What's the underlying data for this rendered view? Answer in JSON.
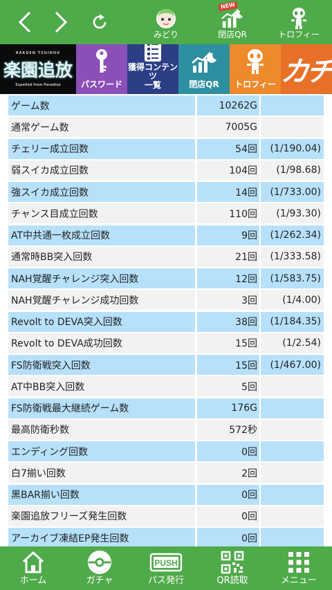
{
  "topbar": {
    "nav": [
      {
        "name": "back",
        "icon": "chevron-left-icon"
      },
      {
        "name": "forward",
        "icon": "chevron-right-icon"
      },
      {
        "name": "reload",
        "icon": "reload-icon"
      }
    ],
    "items": [
      {
        "label": "みどり",
        "icon": "character-face-icon"
      },
      {
        "label": "閉店QR",
        "icon": "chart-moon-icon",
        "badge": "NEW"
      },
      {
        "label": "トロフィー",
        "icon": "trophy-character-icon"
      }
    ]
  },
  "banner": {
    "logo_title": "楽園追放",
    "logo_kana": "RAKUEN TSUIHOU",
    "logo_sub": "Expelled from Paradise",
    "password": "パスワード",
    "contents_line1": "獲得コンテンツ",
    "contents_line2": "一覧",
    "closing_qr": "閉店QR",
    "trophy": "トロフィー",
    "app_logo": "カチ"
  },
  "stats": {
    "rows": [
      {
        "label": "ゲーム数",
        "value": "10262G",
        "ratio": ""
      },
      {
        "label": "通常ゲーム数",
        "value": "7005G",
        "ratio": ""
      },
      {
        "label": "チェリー成立回数",
        "value": "54回",
        "ratio": "(1/190.04)"
      },
      {
        "label": "弱スイカ成立回数",
        "value": "104回",
        "ratio": "(1/98.68)"
      },
      {
        "label": "強スイカ成立回数",
        "value": "14回",
        "ratio": "(1/733.00)"
      },
      {
        "label": "チャンス目成立回数",
        "value": "110回",
        "ratio": "(1/93.30)"
      },
      {
        "label": "AT中共通一枚成立回数",
        "value": "9回",
        "ratio": "(1/262.34)"
      },
      {
        "label": "通常時BB突入回数",
        "value": "21回",
        "ratio": "(1/333.58)"
      },
      {
        "label": "NAH覚醒チャレンジ突入回数",
        "value": "12回",
        "ratio": "(1/583.75)"
      },
      {
        "label": "NAH覚醒チャレンジ成功回数",
        "value": "3回",
        "ratio": "(1/4.00)"
      },
      {
        "label": "Revolt to DEVA突入回数",
        "value": "38回",
        "ratio": "(1/184.35)"
      },
      {
        "label": "Revolt to DEVA成功回数",
        "value": "15回",
        "ratio": "(1/2.54)"
      },
      {
        "label": "FS防衛戦突入回数",
        "value": "15回",
        "ratio": "(1/467.00)"
      },
      {
        "label": "AT中BB突入回数",
        "value": "5回",
        "ratio": ""
      },
      {
        "label": "FS防衛戦最大継続ゲーム数",
        "value": "176G",
        "ratio": ""
      },
      {
        "label": "最高防衛秒数",
        "value": "572秒",
        "ratio": ""
      },
      {
        "label": "エンディング回数",
        "value": "0回",
        "ratio": ""
      },
      {
        "label": "白7揃い回数",
        "value": "2回",
        "ratio": ""
      },
      {
        "label": "黒BAR揃い回数",
        "value": "0回",
        "ratio": ""
      },
      {
        "label": "楽園追放フリーズ発生回数",
        "value": "0回",
        "ratio": ""
      },
      {
        "label": "アーカイブ凍結EP発生回数",
        "value": "0回",
        "ratio": ""
      }
    ]
  },
  "bottombar": {
    "items": [
      {
        "label": "ホーム",
        "icon": "home-icon"
      },
      {
        "label": "ガチャ",
        "icon": "gacha-ball-icon"
      },
      {
        "label": "パス発行",
        "icon": "push-pass-icon",
        "icon_text": "PUSH"
      },
      {
        "label": "QR読取",
        "icon": "qr-code-icon"
      },
      {
        "label": "メニュー",
        "icon": "grid-menu-icon"
      }
    ]
  },
  "colors": {
    "bar_green": "#4faa4a",
    "row_blue": "#b7e1fb",
    "row_gray": "#f2f2f2"
  }
}
